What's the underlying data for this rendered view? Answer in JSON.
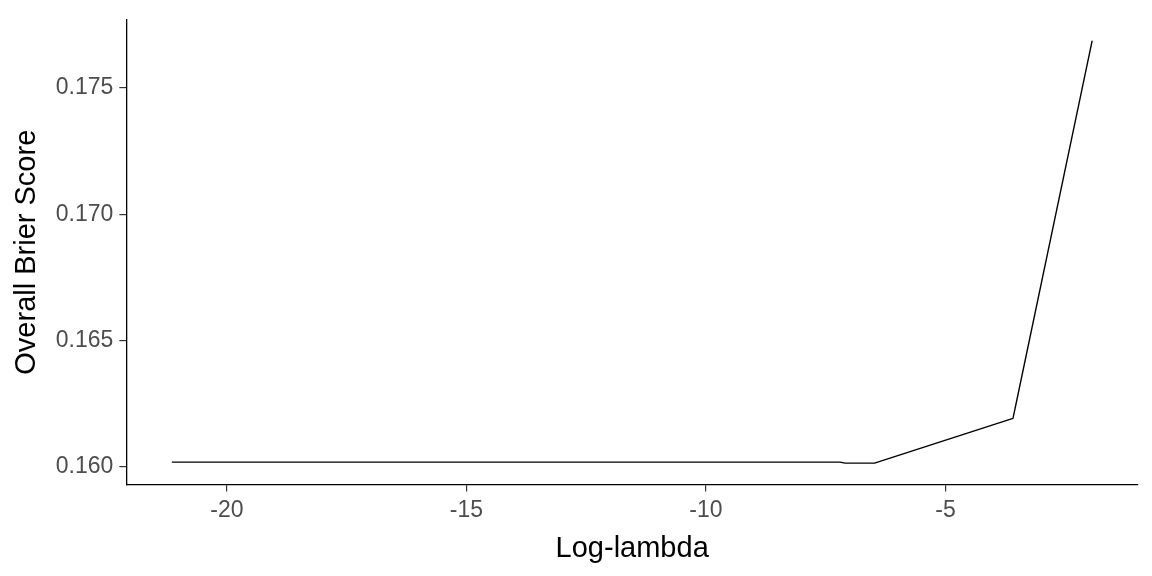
{
  "chart_data": {
    "type": "line",
    "xlabel": "Log-lambda",
    "ylabel": "Overall Brier Score",
    "x": [
      -21.14,
      -7.2,
      -7.1,
      -6.48,
      -3.59,
      -1.94
    ],
    "values": [
      0.16019,
      0.16019,
      0.16015,
      0.16015,
      0.16192,
      0.17685
    ],
    "color": "#000000",
    "marker": "none",
    "grid": false,
    "legend": false,
    "xlim": [
      -22.1,
      -0.98
    ],
    "ylim": [
      0.1593,
      0.1777
    ],
    "xticks": [
      -20,
      -15,
      -10,
      -5
    ],
    "yticks": [
      {
        "value": 0.16,
        "label": "0.160"
      },
      {
        "value": 0.165,
        "label": "0.165"
      },
      {
        "value": 0.17,
        "label": "0.170"
      },
      {
        "value": 0.175,
        "label": "0.175"
      }
    ]
  }
}
